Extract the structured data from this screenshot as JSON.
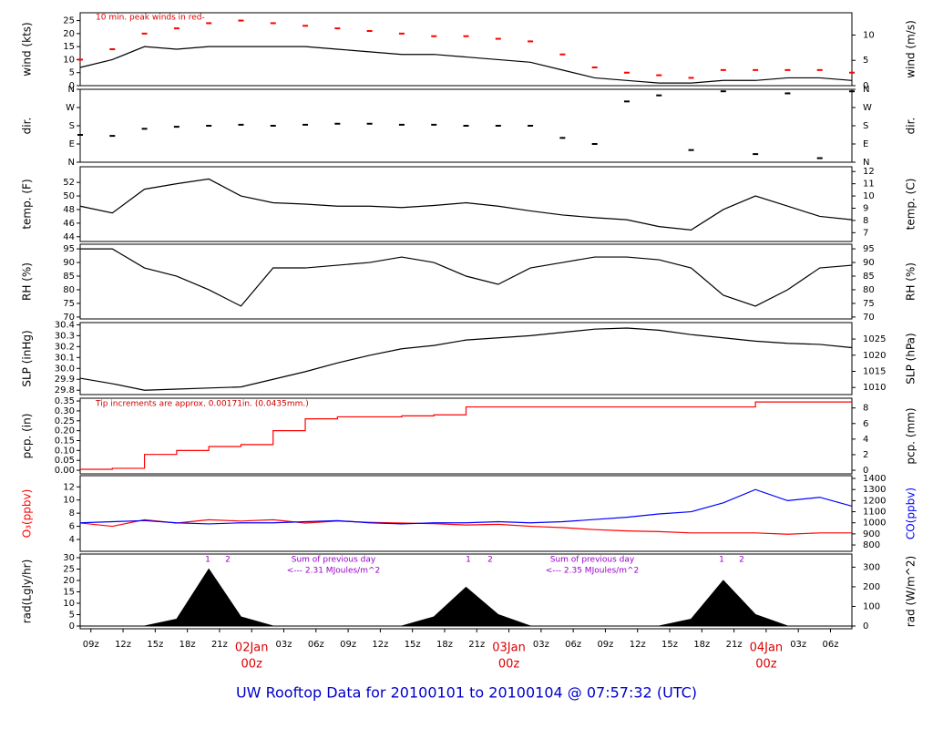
{
  "title": "UW Rooftop Data for 20100101  to  20100104 @ 07:57:32  (UTC)",
  "chart_data": [
    {
      "type": "line",
      "ylabel": "wind (kts)",
      "y2label": "wind (m/s)",
      "xlim": [
        8,
        80
      ],
      "ylim": [
        0,
        28
      ],
      "yticks": [
        0,
        5,
        10,
        15,
        20,
        25
      ],
      "y2lim": [
        0,
        14.4
      ],
      "y2ticks": [
        0,
        5,
        10
      ],
      "annotations": [
        {
          "text": "10 min. peak winds in red-",
          "color": "#dd0000"
        }
      ],
      "x": [
        8,
        11,
        14,
        17,
        20,
        23,
        26,
        29,
        32,
        35,
        38,
        41,
        44,
        47,
        50,
        53,
        56,
        59,
        62,
        65,
        68,
        71,
        74,
        77,
        80
      ],
      "series": [
        {
          "name": "mean wind",
          "color": "#000000",
          "style": "line",
          "values": [
            7,
            10,
            15,
            14,
            15,
            15,
            15,
            15,
            14,
            13,
            12,
            12,
            11,
            10,
            9,
            6,
            3,
            2,
            1,
            1,
            2,
            2,
            3,
            3,
            2
          ]
        },
        {
          "name": "peak wind",
          "color": "#ff0000",
          "style": "points",
          "values": [
            10,
            14,
            20,
            22,
            24,
            25,
            24,
            23,
            22,
            21,
            20,
            19,
            19,
            18,
            17,
            12,
            7,
            5,
            4,
            3,
            6,
            6,
            6,
            6,
            5
          ]
        }
      ]
    },
    {
      "type": "scatter",
      "ylabel": "dir.",
      "y2label": "dir.",
      "xlim": [
        8,
        80
      ],
      "ylim": [
        0,
        360
      ],
      "yticks": [
        {
          "value": 0,
          "label": "N"
        },
        {
          "value": 90,
          "label": "E"
        },
        {
          "value": 180,
          "label": "S"
        },
        {
          "value": 270,
          "label": "W"
        },
        {
          "value": 360,
          "label": "N"
        }
      ],
      "y2lim": [
        0,
        360
      ],
      "y2ticks": [
        {
          "value": 0,
          "label": "N"
        },
        {
          "value": 90,
          "label": "E"
        },
        {
          "value": 180,
          "label": "S"
        },
        {
          "value": 270,
          "label": "W"
        },
        {
          "value": 360,
          "label": "N"
        }
      ],
      "x": [
        8,
        11,
        14,
        17,
        20,
        23,
        26,
        29,
        32,
        35,
        38,
        41,
        44,
        47,
        50,
        53,
        56,
        59,
        62,
        65,
        68,
        71,
        74,
        77,
        80
      ],
      "series": [
        {
          "name": "direction",
          "color": "#000000",
          "style": "points",
          "values": [
            135,
            130,
            165,
            175,
            180,
            185,
            180,
            185,
            190,
            190,
            185,
            185,
            180,
            180,
            180,
            120,
            90,
            300,
            330,
            60,
            350,
            40,
            340,
            20,
            350
          ]
        }
      ]
    },
    {
      "type": "line",
      "ylabel": "temp. (F)",
      "y2label": "temp. (C)",
      "xlim": [
        8,
        80
      ],
      "ylim": [
        43.3,
        54.3
      ],
      "yticks": [
        44,
        46,
        48,
        50,
        52
      ],
      "y2lim": [
        6.28,
        12.39
      ],
      "y2ticks": [
        7,
        8,
        9,
        10,
        11,
        12
      ],
      "x": [
        8,
        11,
        14,
        17,
        20,
        23,
        26,
        29,
        32,
        35,
        38,
        41,
        44,
        47,
        50,
        53,
        56,
        59,
        62,
        65,
        68,
        71,
        74,
        77,
        80
      ],
      "series": [
        {
          "name": "temperature",
          "color": "#000000",
          "style": "line",
          "values": [
            48.5,
            47.5,
            51,
            51.8,
            52.5,
            50,
            49,
            48.8,
            48.5,
            48.5,
            48.3,
            48.6,
            49,
            48.5,
            47.8,
            47.2,
            46.8,
            46.5,
            45.5,
            45,
            48,
            50,
            48.5,
            47,
            46.5
          ]
        }
      ]
    },
    {
      "type": "line",
      "ylabel": "RH (%)",
      "y2label": "RH (%)",
      "xlim": [
        8,
        80
      ],
      "ylim": [
        69.3,
        96.7
      ],
      "yticks": [
        70,
        75,
        80,
        85,
        90,
        95
      ],
      "y2lim": [
        69.3,
        96.7
      ],
      "y2ticks": [
        70,
        75,
        80,
        85,
        90,
        95
      ],
      "x": [
        8,
        11,
        14,
        17,
        20,
        23,
        26,
        29,
        32,
        35,
        38,
        41,
        44,
        47,
        50,
        53,
        56,
        59,
        62,
        65,
        68,
        71,
        74,
        77,
        80
      ],
      "series": [
        {
          "name": "relative humidity",
          "color": "#000000",
          "style": "line",
          "values": [
            95,
            95,
            88,
            85,
            80,
            74,
            88,
            88,
            89,
            90,
            92,
            90,
            85,
            82,
            88,
            90,
            92,
            92,
            91,
            88,
            78,
            74,
            80,
            88,
            89
          ]
        }
      ]
    },
    {
      "type": "line",
      "ylabel": "SLP (inHg)",
      "y2label": "SLP (hPa)",
      "xlim": [
        8,
        80
      ],
      "ylim": [
        29.76,
        30.42
      ],
      "yticks": [
        29.8,
        29.9,
        {
          "value": 30.0,
          "label": "30.0"
        },
        30.1,
        30.2,
        30.3,
        30.4
      ],
      "y2lim": [
        1007.8,
        1030.1
      ],
      "y2ticks": [
        1010,
        1015,
        1020,
        1025
      ],
      "x": [
        8,
        11,
        14,
        17,
        20,
        23,
        26,
        29,
        32,
        35,
        38,
        41,
        44,
        47,
        50,
        53,
        56,
        59,
        62,
        65,
        68,
        71,
        74,
        77,
        80
      ],
      "series": [
        {
          "name": "sea level pressure",
          "color": "#000000",
          "style": "line",
          "values": [
            29.91,
            29.86,
            29.8,
            29.81,
            29.82,
            29.83,
            29.9,
            29.97,
            30.05,
            30.12,
            30.18,
            30.21,
            30.26,
            30.28,
            30.3,
            30.33,
            30.36,
            30.37,
            30.35,
            30.31,
            30.28,
            30.25,
            30.23,
            30.22,
            30.19
          ]
        }
      ]
    },
    {
      "type": "line",
      "ylabel": "pcp. (in)",
      "y2label": "pcp. (mm)",
      "xlim": [
        8,
        80
      ],
      "ylim": [
        -0.018,
        0.364
      ],
      "yticks": [
        {
          "value": 0,
          "label": "0.00"
        },
        0.05,
        {
          "value": 0.1,
          "label": "0.10"
        },
        0.15,
        {
          "value": 0.2,
          "label": "0.20"
        },
        0.25,
        {
          "value": 0.3,
          "label": "0.30"
        },
        0.35
      ],
      "y2lim": [
        -0.46,
        9.25
      ],
      "y2ticks": [
        0,
        2,
        4,
        6,
        8
      ],
      "annotations": [
        {
          "text": "Tip increments are approx. 0.00171in. (0.0435mm.)",
          "color": "#cc0000"
        }
      ],
      "x": [
        8,
        11,
        14,
        17,
        20,
        23,
        26,
        29,
        32,
        35,
        38,
        41,
        44,
        47,
        50,
        53,
        56,
        59,
        62,
        65,
        68,
        71,
        74,
        77,
        80
      ],
      "series": [
        {
          "name": "precipitation",
          "color": "#ff0000",
          "style": "step",
          "values": [
            0.005,
            0.01,
            0.08,
            0.1,
            0.12,
            0.13,
            0.2,
            0.26,
            0.27,
            0.27,
            0.275,
            0.28,
            0.32,
            0.32,
            0.32,
            0.32,
            0.32,
            0.32,
            0.32,
            0.32,
            0.32,
            0.345,
            0.345,
            0.345,
            0.345
          ]
        }
      ]
    },
    {
      "type": "line",
      "ylabel": "O₃(ppbv)",
      "y2label": "CO(ppbv)",
      "ylabel_color": "#ff0000",
      "y2label_color": "#0000ff",
      "xlim": [
        8,
        80
      ],
      "ylim": [
        2.2,
        13.7
      ],
      "yticks": [
        4,
        6,
        8,
        10,
        12
      ],
      "y2lim": [
        743,
        1425
      ],
      "y2ticks": [
        800,
        900,
        1000,
        1100,
        1200,
        1300,
        1400
      ],
      "x": [
        8,
        11,
        14,
        17,
        20,
        23,
        26,
        29,
        32,
        35,
        38,
        41,
        44,
        47,
        50,
        53,
        56,
        59,
        62,
        65,
        68,
        71,
        74,
        77,
        80
      ],
      "series": [
        {
          "name": "O3",
          "color": "#ff0000",
          "style": "line",
          "values": [
            6.5,
            6,
            7,
            6.5,
            7,
            6.8,
            7,
            6.5,
            6.8,
            6.6,
            6.5,
            6.4,
            6.2,
            6.3,
            6,
            5.8,
            5.5,
            5.3,
            5.2,
            5,
            5,
            5,
            4.8,
            5,
            5
          ]
        },
        {
          "name": "CO",
          "color": "#0000ff",
          "style": "line",
          "axis": "y2",
          "values": [
            1000,
            1010,
            1020,
            1000,
            990,
            1000,
            1000,
            1010,
            1020,
            1000,
            990,
            1000,
            1000,
            1010,
            1000,
            1010,
            1030,
            1050,
            1080,
            1100,
            1180,
            1300,
            1200,
            1230,
            1150
          ]
        }
      ]
    },
    {
      "type": "area",
      "ylabel": "rad(Lgly/hr)",
      "y2label": "rad (W/m^2)",
      "xlim": [
        8,
        80
      ],
      "ylim": [
        -1.2,
        31.6
      ],
      "yticks": [
        0,
        5,
        10,
        15,
        20,
        25,
        30
      ],
      "y2lim": [
        -14,
        367
      ],
      "y2ticks": [
        0,
        100,
        200,
        300
      ],
      "xticks": [
        {
          "value": 9,
          "label": "09z"
        },
        {
          "value": 12,
          "label": "12z"
        },
        {
          "value": 15,
          "label": "15z"
        },
        {
          "value": 18,
          "label": "18z"
        },
        {
          "value": 21,
          "label": "21z"
        },
        {
          "value": 24,
          "label": "00z",
          "date": "02Jan"
        },
        {
          "value": 27,
          "label": "03z"
        },
        {
          "value": 30,
          "label": "06z"
        },
        {
          "value": 33,
          "label": "09z"
        },
        {
          "value": 36,
          "label": "12z"
        },
        {
          "value": 39,
          "label": "15z"
        },
        {
          "value": 42,
          "label": "18z"
        },
        {
          "value": 45,
          "label": "21z"
        },
        {
          "value": 48,
          "label": "00z",
          "date": "03Jan"
        },
        {
          "value": 51,
          "label": "03z"
        },
        {
          "value": 54,
          "label": "06z"
        },
        {
          "value": 57,
          "label": "09z"
        },
        {
          "value": 60,
          "label": "12z"
        },
        {
          "value": 63,
          "label": "15z"
        },
        {
          "value": 66,
          "label": "18z"
        },
        {
          "value": 69,
          "label": "21z"
        },
        {
          "value": 72,
          "label": "00z",
          "date": "04Jan"
        },
        {
          "value": 75,
          "label": "03z"
        },
        {
          "value": 78,
          "label": "06z"
        }
      ],
      "annotations": [
        {
          "text": "1",
          "color": "#9900cc"
        },
        {
          "text": "2",
          "color": "#9900cc"
        },
        {
          "text": "Sum of previous day",
          "color": "#9900cc"
        },
        {
          "text": "<--- 2.31 MJoules/m^2",
          "color": "#9900cc"
        },
        {
          "text": "1",
          "color": "#9900cc"
        },
        {
          "text": "2",
          "color": "#9900cc"
        },
        {
          "text": "Sum of previous day",
          "color": "#9900cc"
        },
        {
          "text": "<--- 2.35 MJoules/m^2",
          "color": "#9900cc"
        },
        {
          "text": "1",
          "color": "#9900cc"
        },
        {
          "text": "2",
          "color": "#9900cc"
        }
      ],
      "x": [
        8,
        11,
        14,
        17,
        20,
        23,
        26,
        29,
        32,
        35,
        38,
        41,
        44,
        47,
        50,
        53,
        56,
        59,
        62,
        65,
        68,
        71,
        74,
        77,
        80
      ],
      "series": [
        {
          "name": "radiation",
          "color": "#000000",
          "style": "area",
          "values": [
            0,
            0,
            0,
            3,
            25,
            4,
            0,
            0,
            0,
            0,
            0,
            4,
            17,
            5,
            0,
            0,
            0,
            0,
            0,
            3,
            20,
            5,
            0,
            0,
            0
          ]
        }
      ]
    }
  ]
}
